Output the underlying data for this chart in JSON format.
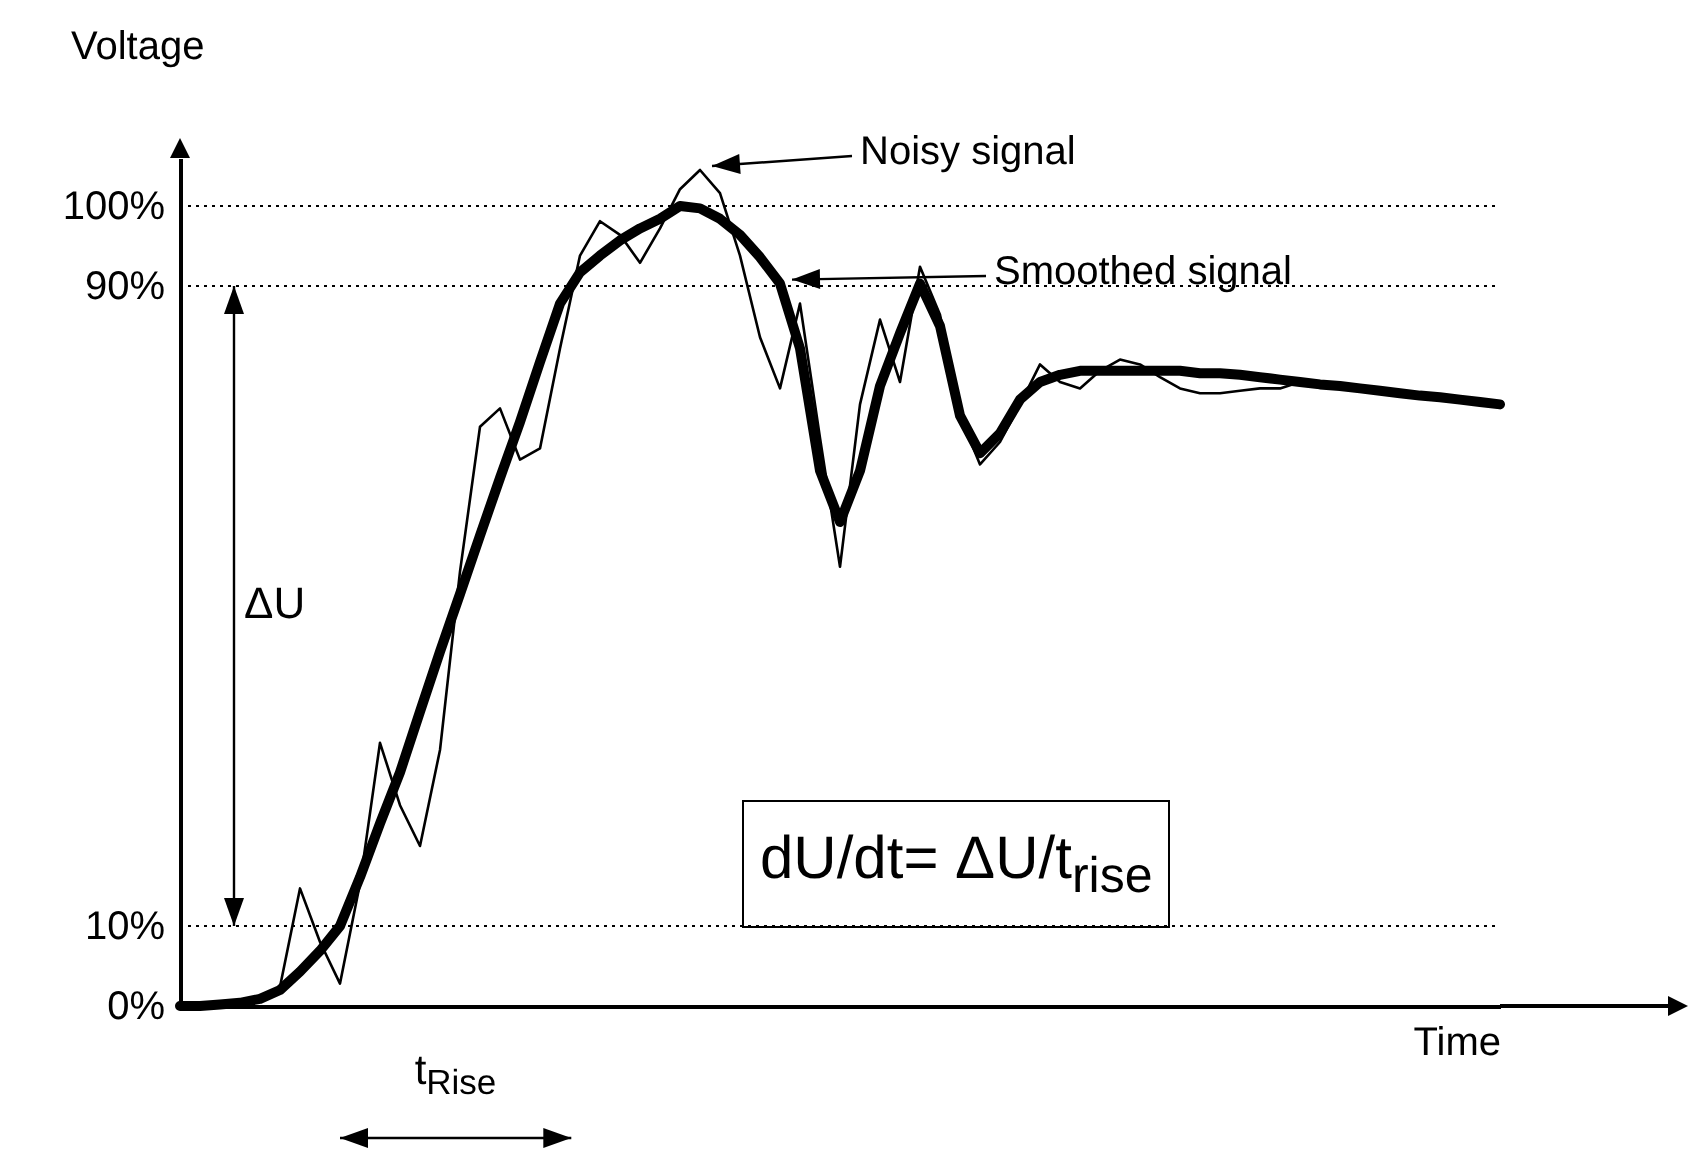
{
  "chart_data": {
    "type": "line",
    "xlabel": "Time",
    "ylabel": "Voltage",
    "categories": [
      null,
      null,
      null,
      null,
      null,
      null,
      null,
      null,
      null,
      null,
      null,
      null,
      null,
      null,
      null,
      null,
      null,
      null,
      null,
      null,
      null,
      null,
      null,
      null,
      null,
      null,
      null,
      null,
      null,
      null,
      null,
      null,
      null,
      null,
      null,
      null,
      null,
      null,
      null,
      null,
      null,
      null,
      null,
      null,
      null,
      null,
      null,
      null,
      null,
      null,
      null,
      null,
      null,
      null,
      null,
      null,
      null,
      null,
      null,
      null,
      null,
      null,
      null,
      null,
      null,
      null,
      null
    ],
    "series": [
      {
        "name": "Noisy signal",
        "color": "#000000",
        "values": [
          0,
          0,
          0.2,
          0.4,
          0.9,
          2.4,
          14.7,
          8.0,
          2.8,
          15.3,
          32.9,
          25.1,
          20.0,
          32.0,
          54.3,
          72.4,
          74.7,
          68.3,
          69.7,
          82.2,
          93.8,
          98.1,
          96.4,
          92.9,
          97.2,
          102.1,
          104.5,
          101.6,
          93.8,
          83.6,
          77.2,
          87.8,
          71.0,
          54.9,
          75.2,
          85.8,
          78.0,
          92.4,
          86.4,
          73.8,
          67.7,
          70.5,
          75.2,
          80.2,
          78.0,
          77.2,
          79.4,
          80.8,
          80.2,
          78.6,
          77.2,
          76.6,
          76.6,
          76.9,
          77.2,
          77.2,
          78.0,
          77.7,
          77.5,
          77.2,
          76.9,
          76.6,
          76.3,
          76.1,
          75.8,
          75.5,
          75.2
        ]
      },
      {
        "name": "Smoothed signal",
        "color": "#000000",
        "values": [
          0,
          0,
          0.2,
          0.4,
          0.9,
          2.0,
          4.3,
          6.9,
          10,
          16.1,
          22.8,
          29.2,
          36.8,
          44.3,
          51.5,
          58.8,
          66.0,
          73.0,
          80.5,
          87.8,
          91.7,
          93.8,
          95.7,
          97.2,
          98.4,
          100,
          99.7,
          98.4,
          96.4,
          93.6,
          90.3,
          82.2,
          66.9,
          60.5,
          66.9,
          77.5,
          84.1,
          90.3,
          85.0,
          73.8,
          69.1,
          71.6,
          75.8,
          78.0,
          78.9,
          79.4,
          79.4,
          79.4,
          79.4,
          79.4,
          79.4,
          79.1,
          79.1,
          78.9,
          78.6,
          78.3,
          78.0,
          77.7,
          77.5,
          77.2,
          76.9,
          76.6,
          76.3,
          76.1,
          75.8,
          75.5,
          75.2
        ]
      }
    ],
    "ylim": [
      0,
      106
    ],
    "legend": "top right",
    "yticks": [
      {
        "value": 0,
        "label": "0%"
      },
      {
        "value": 10,
        "label": "10%"
      },
      {
        "value": 90,
        "label": "90%"
      },
      {
        "value": 100,
        "label": "100%"
      }
    ],
    "ref_lines": [
      {
        "axis": "y",
        "value": 10,
        "line_style": "dotted"
      },
      {
        "axis": "y",
        "value": 90,
        "line_style": "dotted"
      },
      {
        "axis": "y",
        "value": 100,
        "line_style": "dotted"
      }
    ],
    "annotations": [
      "ΔU",
      "t$_{Rise}$",
      "dU/dt= ΔU/t$_{rise}$"
    ]
  }
}
